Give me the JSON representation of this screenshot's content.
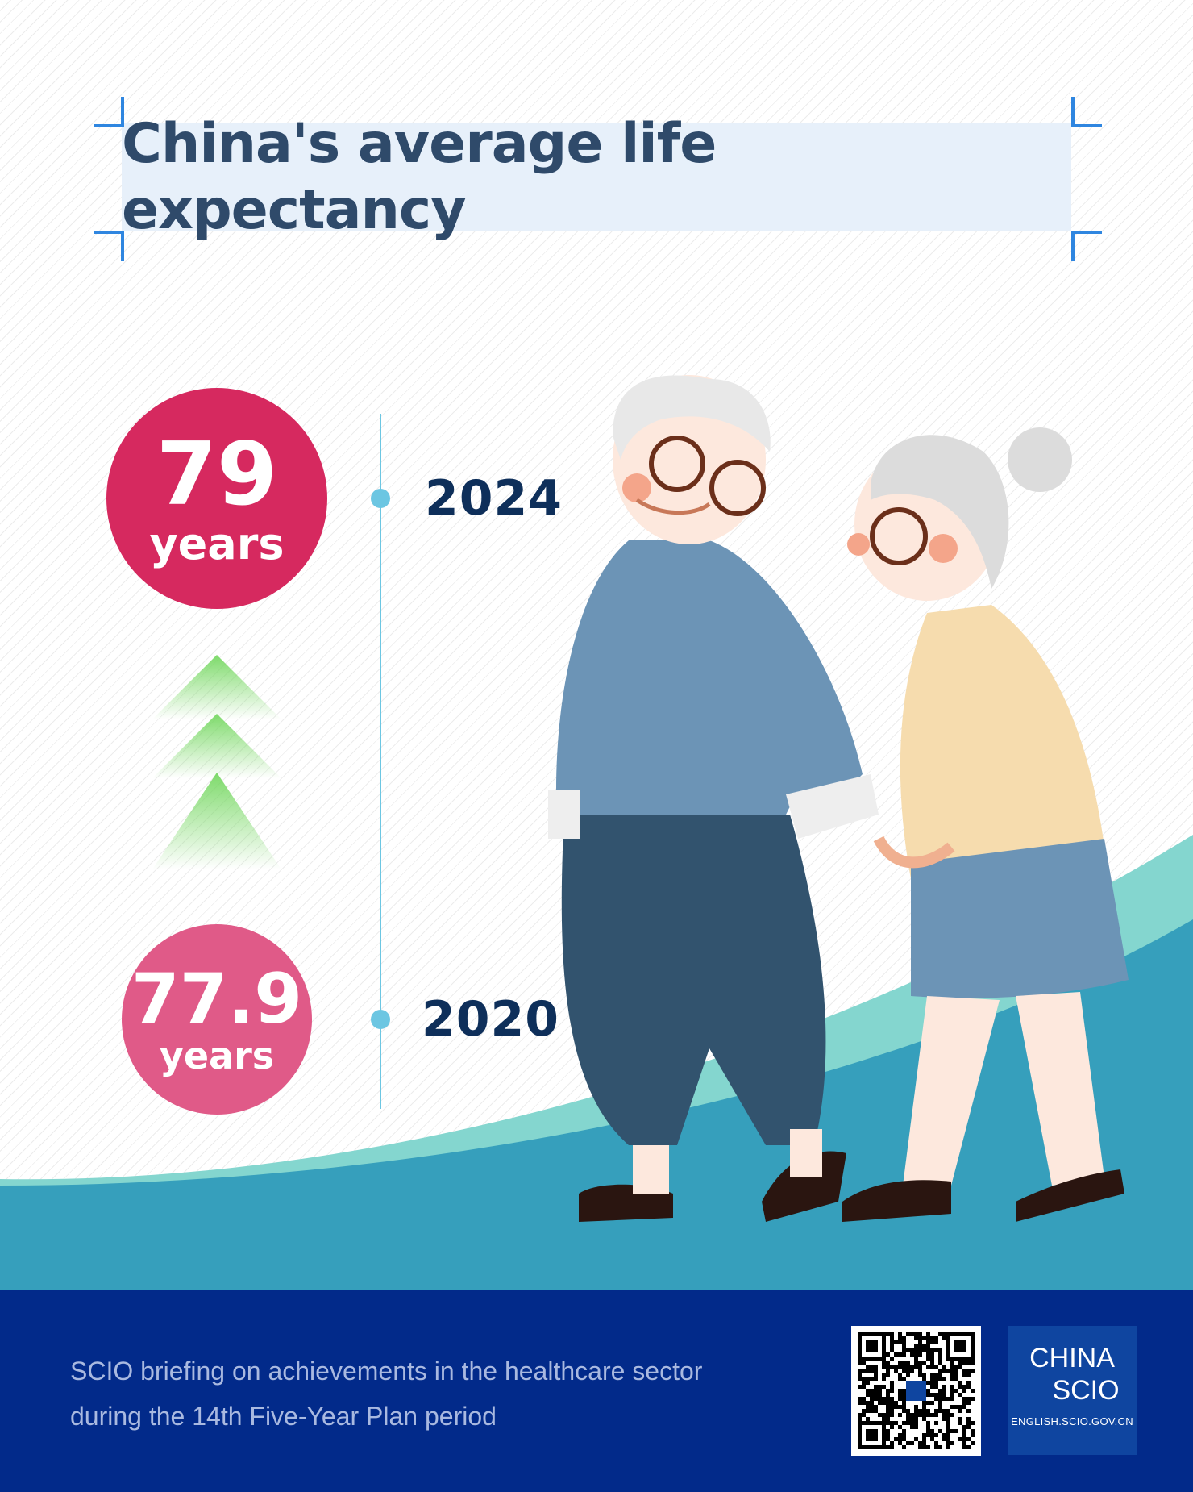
{
  "header": {
    "title": "China's average life expectancy"
  },
  "timeline": [
    {
      "year": "2024",
      "value": "79",
      "unit": "years",
      "color": "#d6295f"
    },
    {
      "year": "2020",
      "value": "77.9",
      "unit": "years",
      "color": "#e05a88"
    }
  ],
  "trend_icon": "up-arrows-icon",
  "footer": {
    "line1": "SCIO briefing on achievements in the healthcare sector",
    "line2": "during the 14th Five-Year Plan period",
    "logo_line1": "CHINA",
    "logo_line2": "SCIO",
    "logo_url": "ENGLISH.SCIO.GOV.CN"
  },
  "colors": {
    "title": "#2f4a6a",
    "footer_bg": "#022a8a",
    "teal": "#369fbc",
    "light_teal": "#84d6cf",
    "timeline": "#6cc6e2"
  }
}
